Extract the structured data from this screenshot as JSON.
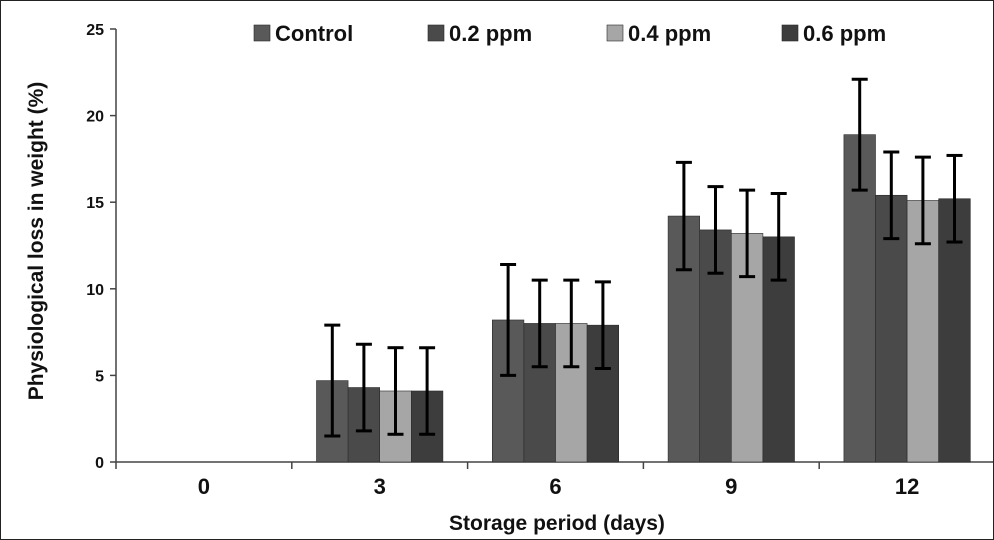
{
  "chart_data": {
    "type": "bar",
    "title": "",
    "xlabel": "Storage period (days)",
    "ylabel": "Physiological loss in weight (%)",
    "categories": [
      "0",
      "3",
      "6",
      "9",
      "12"
    ],
    "ylim": [
      0,
      25
    ],
    "yticks": [
      "0",
      "5",
      "10",
      "15",
      "20",
      "25"
    ],
    "grid": false,
    "legend_position": "top",
    "error_bars": true,
    "series": [
      {
        "name": "Control",
        "color": "#595959",
        "values": [
          0,
          4.7,
          8.2,
          14.2,
          18.9
        ],
        "errors": [
          0,
          3.2,
          3.2,
          3.1,
          3.2
        ]
      },
      {
        "name": "0.2 ppm",
        "color": "#4a4a4a",
        "values": [
          0,
          4.3,
          8.0,
          13.4,
          15.4
        ],
        "errors": [
          0,
          2.5,
          2.5,
          2.5,
          2.5
        ]
      },
      {
        "name": "0.4 ppm",
        "color": "#a6a6a6",
        "values": [
          0,
          4.1,
          8.0,
          13.2,
          15.1
        ],
        "errors": [
          0,
          2.5,
          2.5,
          2.5,
          2.5
        ]
      },
      {
        "name": "0.6 ppm",
        "color": "#3d3d3d",
        "values": [
          0,
          4.1,
          7.9,
          13.0,
          15.2
        ],
        "errors": [
          0,
          2.5,
          2.5,
          2.5,
          2.5
        ]
      }
    ]
  }
}
